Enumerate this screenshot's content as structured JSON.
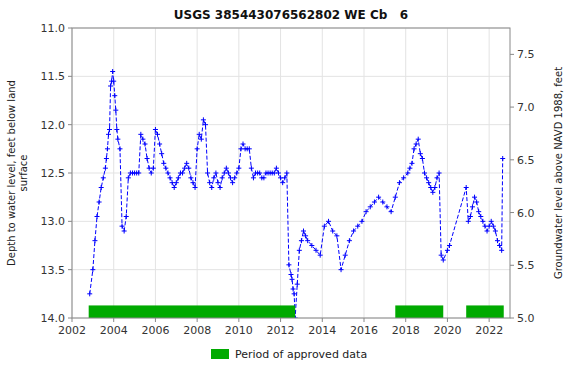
{
  "chart_data": {
    "type": "line",
    "title": "USGS 385443076562802 WE Cb   6",
    "y_label": "Depth to water level, feet below land\nsurface",
    "y2_label": "Groundwater level above NAVD 1988, feet",
    "xlim": [
      2002,
      2023
    ],
    "xticks": [
      2002,
      2004,
      2006,
      2008,
      2010,
      2012,
      2014,
      2016,
      2018,
      2020,
      2022
    ],
    "ylim": [
      14.0,
      11.0
    ],
    "yticks": [
      {
        "value": 11.0,
        "label": "11.0"
      },
      {
        "value": 11.5,
        "label": "11.5"
      },
      {
        "value": 12.0,
        "label": "12.0"
      },
      {
        "value": 12.5,
        "label": "12.5"
      },
      {
        "value": 13.0,
        "label": "13.0"
      },
      {
        "value": 13.5,
        "label": "13.5"
      },
      {
        "value": 14.0,
        "label": "14.0"
      }
    ],
    "y2lim": [
      5.0,
      7.75
    ],
    "y2ticks": [
      {
        "value": 5.0,
        "label": "5.0"
      },
      {
        "value": 5.5,
        "label": "5.5"
      },
      {
        "value": 6.0,
        "label": "6.0"
      },
      {
        "value": 6.5,
        "label": "6.5"
      },
      {
        "value": 7.0,
        "label": "7.0"
      },
      {
        "value": 7.5,
        "label": "7.5"
      }
    ],
    "grid": true,
    "legend": "bottom",
    "x": [
      2002.85,
      2003.0,
      2003.1,
      2003.2,
      2003.3,
      2003.4,
      2003.5,
      2003.6,
      2003.65,
      2003.7,
      2003.75,
      2003.8,
      2003.85,
      2003.9,
      2003.95,
      2004.0,
      2004.05,
      2004.1,
      2004.15,
      2004.2,
      2004.3,
      2004.4,
      2004.5,
      2004.6,
      2004.7,
      2004.8,
      2004.9,
      2005.0,
      2005.1,
      2005.2,
      2005.3,
      2005.4,
      2005.5,
      2005.6,
      2005.7,
      2005.8,
      2005.9,
      2006.0,
      2006.1,
      2006.2,
      2006.3,
      2006.4,
      2006.5,
      2006.6,
      2006.7,
      2006.8,
      2006.9,
      2007.0,
      2007.1,
      2007.2,
      2007.3,
      2007.4,
      2007.5,
      2007.6,
      2007.7,
      2007.8,
      2007.9,
      2008.0,
      2008.1,
      2008.2,
      2008.3,
      2008.4,
      2008.5,
      2008.6,
      2008.7,
      2008.8,
      2008.9,
      2009.0,
      2009.1,
      2009.2,
      2009.3,
      2009.4,
      2009.5,
      2009.6,
      2009.7,
      2009.8,
      2009.9,
      2010.0,
      2010.1,
      2010.2,
      2010.3,
      2010.4,
      2010.5,
      2010.6,
      2010.7,
      2010.8,
      2010.9,
      2011.0,
      2011.1,
      2011.2,
      2011.3,
      2011.4,
      2011.5,
      2011.6,
      2011.7,
      2011.8,
      2011.9,
      2012.0,
      2012.1,
      2012.2,
      2012.3,
      2012.4,
      2012.5,
      2012.55,
      2012.6,
      2012.65,
      2012.7,
      2012.8,
      2012.9,
      2013.0,
      2013.1,
      2013.2,
      2013.3,
      2013.5,
      2013.7,
      2013.9,
      2014.1,
      2014.3,
      2014.5,
      2014.7,
      2014.9,
      2015.1,
      2015.3,
      2015.5,
      2015.7,
      2015.9,
      2016.1,
      2016.3,
      2016.5,
      2016.7,
      2016.9,
      2017.1,
      2017.3,
      2017.5,
      2017.7,
      2017.9,
      2018.1,
      2018.2,
      2018.3,
      2018.4,
      2018.5,
      2018.6,
      2018.7,
      2018.8,
      2018.9,
      2019.0,
      2019.1,
      2019.2,
      2019.3,
      2019.4,
      2019.5,
      2019.6,
      2019.7,
      2019.8,
      2020.0,
      2020.1,
      2020.9,
      2021.0,
      2021.1,
      2021.2,
      2021.3,
      2021.4,
      2021.5,
      2021.6,
      2021.7,
      2021.8,
      2021.9,
      2022.0,
      2022.1,
      2022.2,
      2022.3,
      2022.4,
      2022.5,
      2022.6,
      2022.65
    ],
    "series": [
      {
        "color": "#0000FF",
        "line_style": "dashed",
        "marker": "plus",
        "values": [
          13.75,
          13.5,
          13.2,
          12.95,
          12.8,
          12.65,
          12.55,
          12.45,
          12.35,
          12.25,
          12.1,
          12.05,
          11.6,
          11.55,
          11.45,
          11.55,
          11.7,
          11.85,
          12.05,
          12.15,
          12.25,
          13.05,
          13.1,
          12.95,
          12.55,
          12.5,
          12.5,
          12.5,
          12.5,
          12.5,
          12.1,
          12.15,
          12.2,
          12.35,
          12.45,
          12.5,
          12.45,
          12.05,
          12.1,
          12.2,
          12.3,
          12.4,
          12.45,
          12.5,
          12.55,
          12.6,
          12.65,
          12.6,
          12.55,
          12.5,
          12.5,
          12.45,
          12.4,
          12.45,
          12.55,
          12.6,
          12.65,
          12.25,
          12.1,
          12.15,
          11.95,
          12.0,
          12.5,
          12.6,
          12.65,
          12.55,
          12.5,
          12.6,
          12.65,
          12.55,
          12.5,
          12.45,
          12.5,
          12.55,
          12.6,
          12.55,
          12.5,
          12.45,
          12.25,
          12.2,
          12.25,
          12.25,
          12.25,
          12.45,
          12.55,
          12.5,
          12.5,
          12.5,
          12.55,
          12.55,
          12.5,
          12.5,
          12.5,
          12.5,
          12.5,
          12.45,
          12.5,
          12.55,
          12.6,
          12.55,
          12.5,
          13.45,
          13.55,
          13.6,
          13.7,
          13.75,
          14.0,
          13.65,
          13.3,
          13.2,
          13.1,
          13.15,
          13.2,
          13.25,
          13.3,
          13.35,
          13.05,
          13.0,
          13.1,
          13.15,
          13.5,
          13.35,
          13.2,
          13.1,
          13.05,
          13.0,
          12.9,
          12.85,
          12.8,
          12.75,
          12.8,
          12.85,
          12.9,
          12.75,
          12.6,
          12.55,
          12.5,
          12.45,
          12.4,
          12.25,
          12.2,
          12.15,
          12.3,
          12.35,
          12.5,
          12.55,
          12.6,
          12.65,
          12.7,
          12.65,
          12.55,
          12.5,
          13.35,
          13.4,
          13.3,
          13.25,
          12.65,
          13.0,
          12.95,
          12.85,
          12.75,
          12.8,
          12.9,
          12.95,
          13.0,
          13.05,
          13.1,
          13.05,
          13.0,
          13.05,
          13.1,
          13.2,
          13.25,
          13.3,
          12.35
        ]
      },
      {
        "name": "Period of approved data",
        "type": "span",
        "color": "#00AA00",
        "x_ranges": [
          [
            2002.8,
            2012.7
          ],
          [
            2017.5,
            2019.8
          ],
          [
            2020.9,
            2022.7
          ]
        ],
        "y_range": [
          13.87,
          14.0
        ]
      }
    ]
  }
}
